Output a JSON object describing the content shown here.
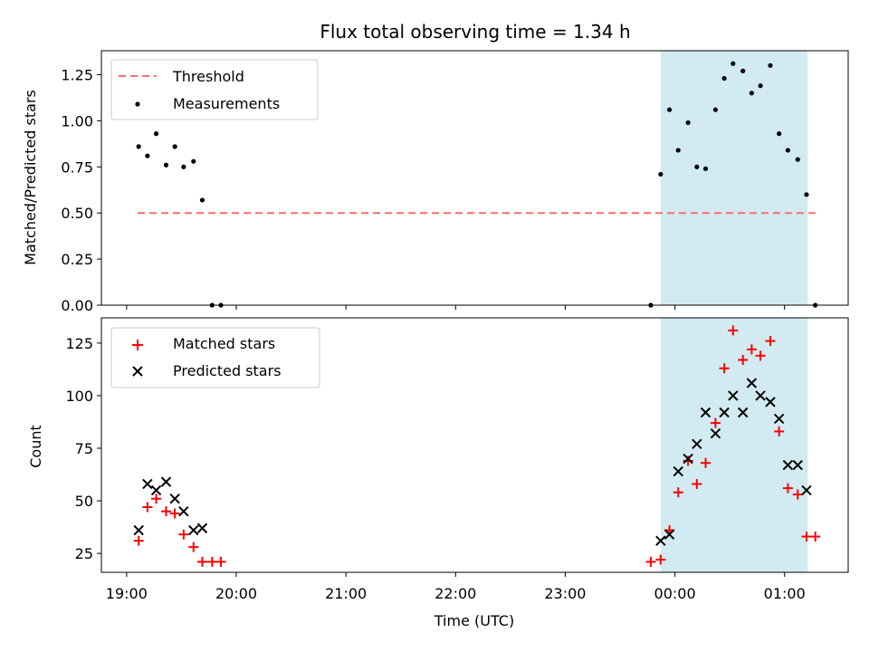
{
  "chart_data": [
    {
      "type": "scatter",
      "title": "Flux total observing time = 1.34 h",
      "xlabel": "",
      "ylabel": "Matched/Predicted stars",
      "xlim": [
        18.77,
        25.58
      ],
      "ylim": [
        0.0,
        1.38
      ],
      "yticks": [
        0.0,
        0.25,
        0.5,
        0.75,
        1.0,
        1.25
      ],
      "ytick_labels": [
        "0.00",
        "0.25",
        "0.50",
        "0.75",
        "1.00",
        "1.25"
      ],
      "xticks": [
        19,
        20,
        21,
        22,
        23,
        24,
        25
      ],
      "shaded_range": [
        23.87,
        25.21
      ],
      "shade_color": "#add8e6",
      "legend_position": "upper left",
      "threshold": {
        "name": "Threshold",
        "value": 0.5,
        "x_range": [
          19.1,
          25.28
        ],
        "color": "#ff6b6b"
      },
      "series": [
        {
          "name": "Measurements",
          "color": "#000000",
          "marker": "dot",
          "x": [
            19.11,
            19.19,
            19.27,
            19.36,
            19.44,
            19.52,
            19.61,
            19.69,
            19.78,
            19.86,
            23.78,
            23.87,
            23.95,
            24.03,
            24.12,
            24.2,
            24.28,
            24.37,
            24.45,
            24.53,
            24.62,
            24.7,
            24.78,
            24.87,
            24.95,
            25.03,
            25.12,
            25.2,
            25.28
          ],
          "y": [
            0.86,
            0.81,
            0.93,
            0.76,
            0.86,
            0.75,
            0.78,
            0.57,
            0.0,
            0.0,
            0.0,
            0.71,
            1.06,
            0.84,
            0.99,
            0.75,
            0.74,
            1.06,
            1.23,
            1.31,
            1.27,
            1.15,
            1.19,
            1.3,
            0.93,
            0.84,
            0.79,
            0.6,
            0.0
          ]
        }
      ]
    },
    {
      "type": "scatter",
      "title": "",
      "xlabel": "Time (UTC)",
      "ylabel": "Count",
      "xlim": [
        18.77,
        25.58
      ],
      "ylim": [
        16,
        137
      ],
      "yticks": [
        25,
        50,
        75,
        100,
        125
      ],
      "ytick_labels": [
        "25",
        "50",
        "75",
        "100",
        "125"
      ],
      "xticks": [
        19,
        20,
        21,
        22,
        23,
        24,
        25
      ],
      "xtick_labels": [
        "19:00",
        "20:00",
        "21:00",
        "22:00",
        "23:00",
        "00:00",
        "01:00"
      ],
      "shaded_range": [
        23.87,
        25.21
      ],
      "shade_color": "#add8e6",
      "legend_position": "upper left",
      "series": [
        {
          "name": "Matched stars",
          "color": "#ff0000",
          "marker": "plus",
          "x": [
            19.11,
            19.19,
            19.27,
            19.36,
            19.44,
            19.52,
            19.61,
            19.69,
            19.78,
            19.86,
            23.78,
            23.87,
            23.95,
            24.03,
            24.12,
            24.2,
            24.28,
            24.37,
            24.45,
            24.53,
            24.62,
            24.7,
            24.78,
            24.87,
            24.95,
            25.03,
            25.12,
            25.2,
            25.28
          ],
          "y": [
            31,
            47,
            51,
            45,
            44,
            34,
            28,
            21,
            21,
            21,
            21,
            22,
            36,
            54,
            69,
            58,
            68,
            87,
            113,
            131,
            117,
            122,
            119,
            126,
            83,
            56,
            53,
            33,
            33
          ]
        },
        {
          "name": "Predicted stars",
          "color": "#000000",
          "marker": "x",
          "x": [
            19.11,
            19.19,
            19.27,
            19.36,
            19.44,
            19.52,
            19.61,
            19.69,
            23.87,
            23.95,
            24.03,
            24.12,
            24.2,
            24.28,
            24.37,
            24.45,
            24.53,
            24.62,
            24.7,
            24.78,
            24.87,
            24.95,
            25.03,
            25.12,
            25.2
          ],
          "y": [
            36,
            58,
            55,
            59,
            51,
            45,
            36,
            37,
            31,
            34,
            64,
            70,
            77,
            92,
            82,
            92,
            100,
            92,
            106,
            100,
            97,
            89,
            67,
            67,
            55
          ]
        }
      ]
    }
  ]
}
